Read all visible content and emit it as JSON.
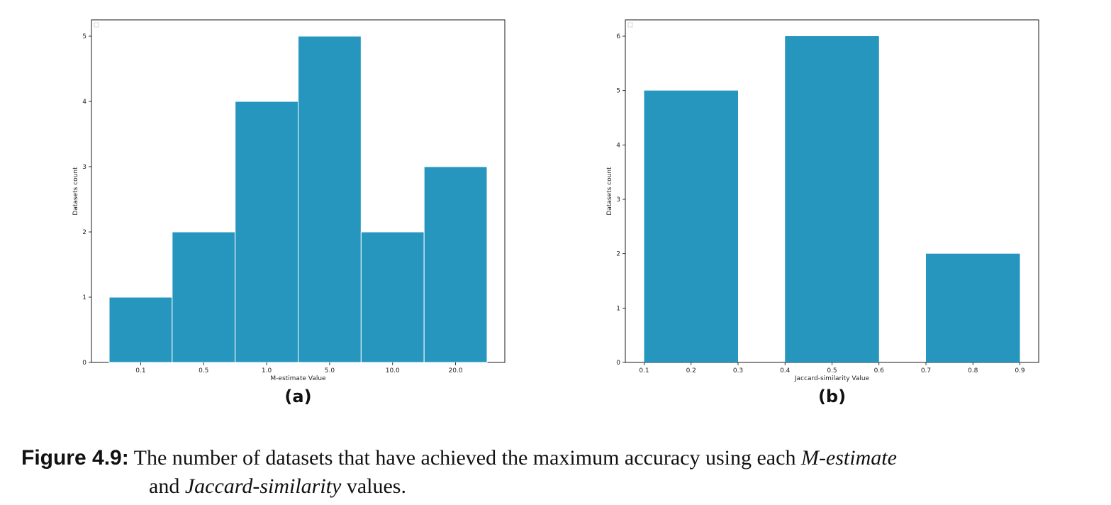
{
  "chart_data": [
    {
      "type": "bar",
      "panel_label": "(a)",
      "categories": [
        "0.1",
        "0.5",
        "1.0",
        "5.0",
        "10.0",
        "20.0"
      ],
      "values": [
        1,
        2,
        4,
        5,
        2,
        3
      ],
      "xlabel": "M-estimate Value",
      "ylabel": "Datasets count",
      "ylim": [
        0,
        5.25
      ],
      "yticks": [
        "0",
        "1",
        "2",
        "3",
        "4",
        "5"
      ],
      "bar_color": "#2696bf",
      "grid": false,
      "legend": "top-left (empty)"
    },
    {
      "type": "bar",
      "panel_label": "(b)",
      "bins": [
        [
          0.1,
          0.3
        ],
        [
          0.4,
          0.6
        ],
        [
          0.7,
          0.9
        ]
      ],
      "values": [
        5,
        6,
        2
      ],
      "xticks": [
        "0.1",
        "0.2",
        "0.3",
        "0.4",
        "0.5",
        "0.6",
        "0.7",
        "0.8",
        "0.9"
      ],
      "xlabel": "Jaccard-similarity Value",
      "ylabel": "Datasets count",
      "xlim": [
        0.06,
        0.94
      ],
      "ylim": [
        0,
        6.3
      ],
      "yticks": [
        "0",
        "1",
        "2",
        "3",
        "4",
        "5",
        "6"
      ],
      "bar_color": "#2696bf",
      "grid": false,
      "legend": "top-left (empty)"
    }
  ],
  "caption": {
    "label": "Figure 4.9:",
    "text_1": " The number of datasets that have achieved the maximum accuracy using each ",
    "em_1": "M-estimate",
    "text_2": "and ",
    "em_2": "Jaccard-similarity",
    "text_3": " values."
  }
}
